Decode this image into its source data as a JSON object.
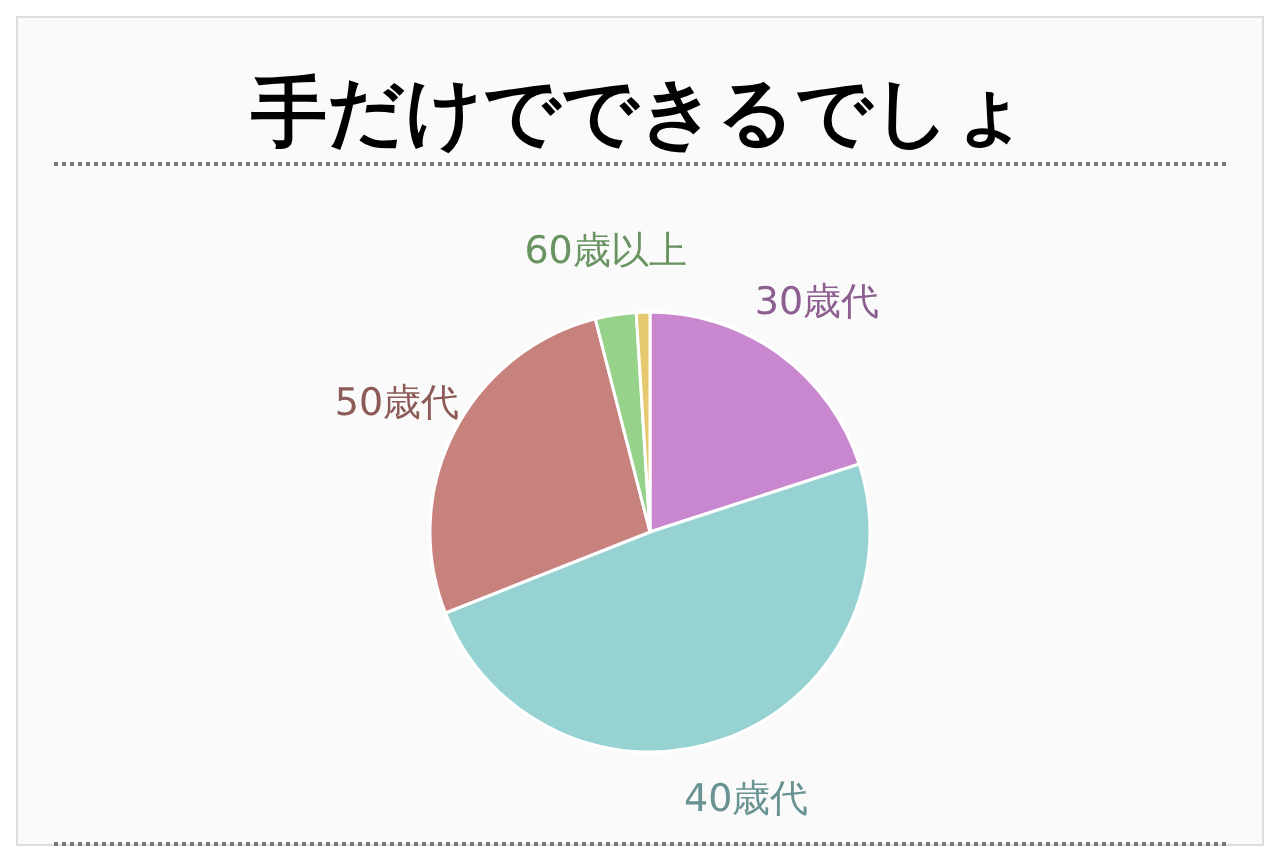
{
  "chart_data": {
    "type": "pie",
    "title": "手だけでできるでしょ",
    "categories": [
      "30歳代",
      "40歳代",
      "50歳代",
      "60歳以上",
      null
    ],
    "values": [
      20,
      49,
      27,
      3,
      1
    ],
    "colors": [
      "#c987cf",
      "#96d2d2",
      "#c8827e",
      "#96d28a",
      "#e6c86e"
    ]
  }
}
